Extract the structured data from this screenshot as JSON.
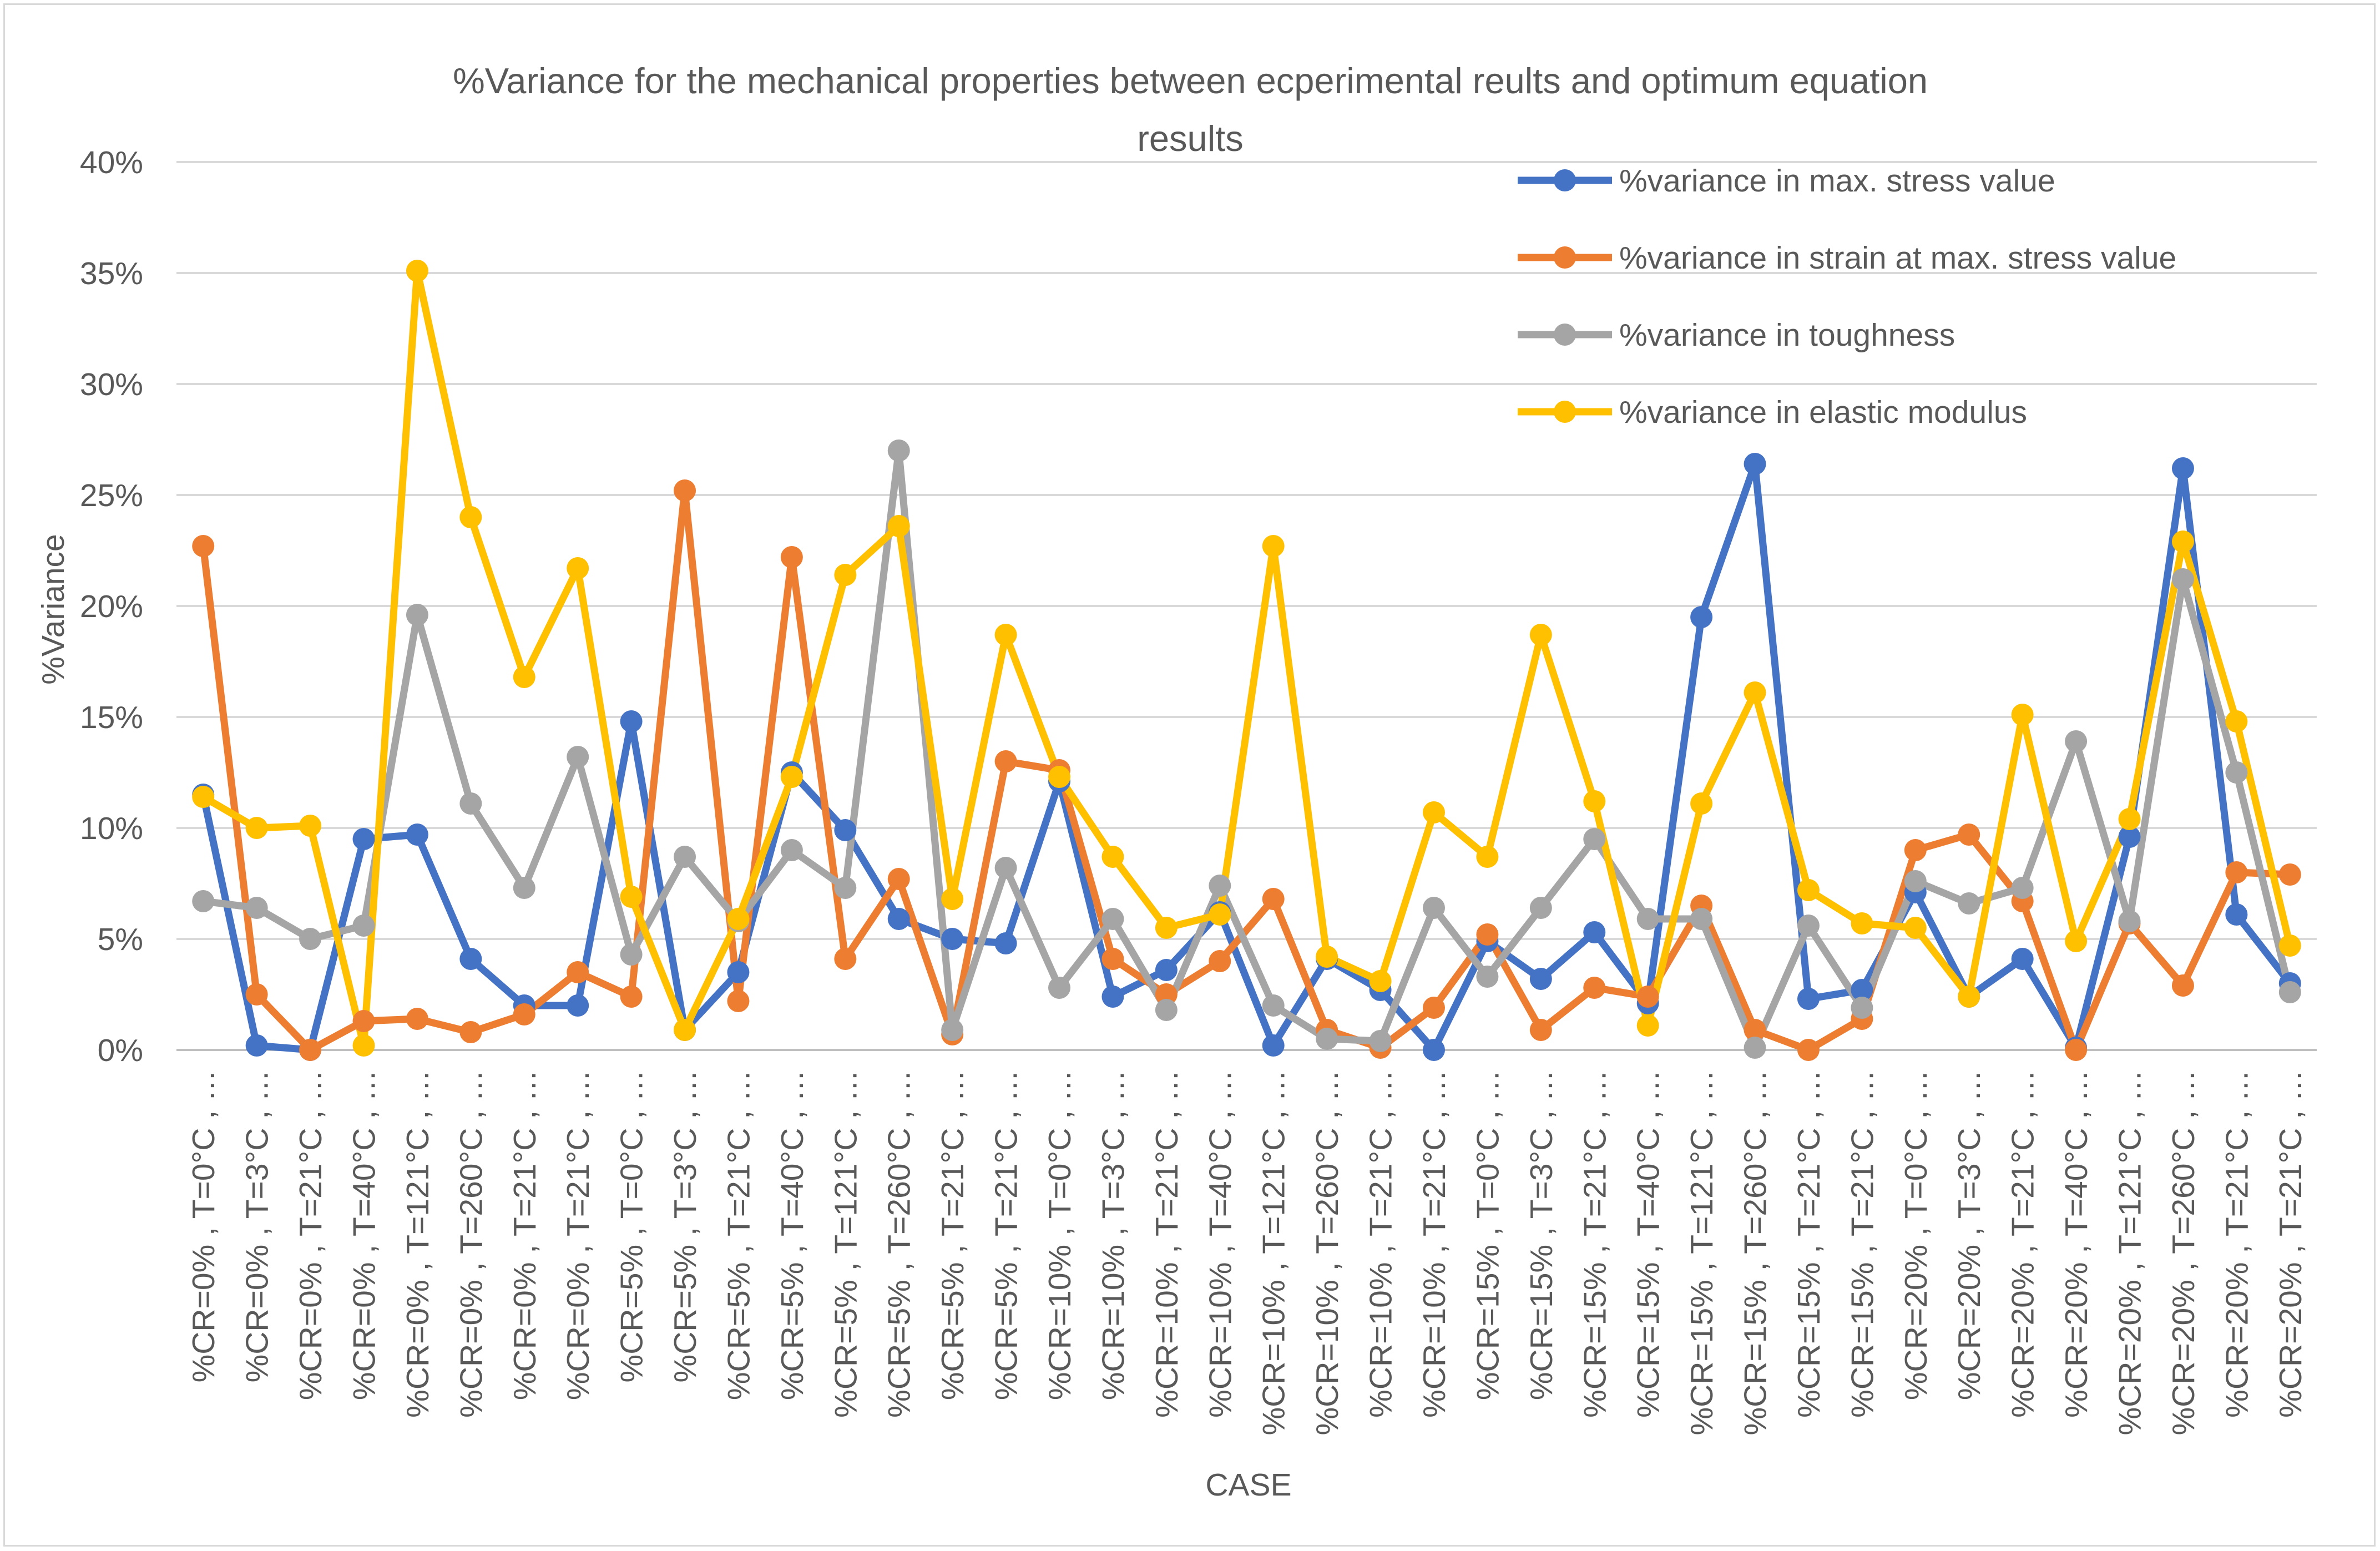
{
  "chart_data": {
    "type": "line",
    "title_lines": [
      "%Variance for the mechanical properties between ecperimental reults and optimum equation",
      "results"
    ],
    "xlabel": "CASE",
    "ylabel": "%Variance",
    "ylim": [
      0,
      40
    ],
    "yticks": [
      "0%",
      "5%",
      "10%",
      "15%",
      "20%",
      "25%",
      "30%",
      "35%",
      "40%"
    ],
    "grid": true,
    "legend_position": "top-right",
    "categories": [
      "%CR=0% , T=0°C , …",
      "%CR=0% , T=3°C , …",
      "%CR=0% , T=21°C , …",
      "%CR=0% , T=40°C , …",
      "%CR=0% , T=121°C , …",
      "%CR=0% , T=260°C , …",
      "%CR=0% , T=21°C , …",
      "%CR=0% , T=21°C , …",
      "%CR=5% , T=0°C , …",
      "%CR=5% , T=3°C , …",
      "%CR=5% , T=21°C , …",
      "%CR=5% , T=40°C , …",
      "%CR=5% , T=121°C , …",
      "%CR=5% , T=260°C , …",
      "%CR=5% , T=21°C , …",
      "%CR=5% , T=21°C , …",
      "%CR=10% , T=0°C , …",
      "%CR=10% , T=3°C , …",
      "%CR=10% , T=21°C , …",
      "%CR=10% , T=40°C , …",
      "%CR=10% , T=121°C , …",
      "%CR=10% , T=260°C , …",
      "%CR=10% , T=21°C , …",
      "%CR=10% , T=21°C , …",
      "%CR=15% , T=0°C , …",
      "%CR=15% , T=3°C , …",
      "%CR=15% , T=21°C , …",
      "%CR=15% , T=40°C , …",
      "%CR=15% , T=121°C , …",
      "%CR=15% , T=260°C , …",
      "%CR=15% , T=21°C , …",
      "%CR=15% , T=21°C , …",
      "%CR=20% , T=0°C , …",
      "%CR=20% , T=3°C , …",
      "%CR=20% , T=21°C , …",
      "%CR=20% , T=40°C , …",
      "%CR=20% , T=121°C , …",
      "%CR=20% , T=260°C , …",
      "%CR=20% , T=21°C , …",
      "%CR=20% , T=21°C , …"
    ],
    "series": [
      {
        "name": "%variance in max. stress value",
        "color": "#4472c4",
        "values": [
          11.5,
          0.2,
          0.0,
          9.5,
          9.7,
          4.1,
          2.0,
          2.0,
          14.8,
          0.9,
          3.5,
          12.5,
          9.9,
          5.9,
          5.0,
          4.8,
          12.1,
          2.4,
          3.6,
          6.2,
          0.2,
          4.1,
          2.7,
          0.0,
          4.9,
          3.2,
          5.3,
          2.1,
          19.5,
          26.4,
          2.3,
          2.7,
          7.1,
          2.4,
          4.1,
          0.1,
          9.6,
          26.2,
          6.1,
          3.0
        ]
      },
      {
        "name": "%variance in strain at max. stress value",
        "color": "#ed7d31",
        "values": [
          22.7,
          2.5,
          0.0,
          1.3,
          1.4,
          0.8,
          1.6,
          3.5,
          2.4,
          25.2,
          2.2,
          22.2,
          4.1,
          7.7,
          0.7,
          13.0,
          12.6,
          4.1,
          2.5,
          4.0,
          6.8,
          0.9,
          0.1,
          1.9,
          5.2,
          0.9,
          2.8,
          2.4,
          6.5,
          0.9,
          0.0,
          1.4,
          9.0,
          9.7,
          6.7,
          0.0,
          5.7,
          2.9,
          8.0,
          7.9
        ]
      },
      {
        "name": "%variance in toughness",
        "color": "#a5a5a5",
        "values": [
          6.7,
          6.4,
          5.0,
          5.6,
          19.6,
          11.1,
          7.3,
          13.2,
          4.3,
          8.7,
          5.8,
          9.0,
          7.3,
          27.0,
          0.9,
          8.2,
          2.8,
          5.9,
          1.8,
          7.4,
          2.0,
          0.5,
          0.4,
          6.4,
          3.3,
          6.4,
          9.5,
          5.9,
          5.9,
          0.1,
          5.6,
          1.9,
          7.6,
          6.6,
          7.3,
          13.9,
          5.8,
          21.2,
          12.5,
          2.6
        ]
      },
      {
        "name": "%variance in elastic modulus",
        "color": "#ffc000",
        "values": [
          11.4,
          10.0,
          10.1,
          0.2,
          35.1,
          24.0,
          16.8,
          21.7,
          6.9,
          0.9,
          5.9,
          12.3,
          21.4,
          23.6,
          6.8,
          18.7,
          12.3,
          8.7,
          5.5,
          6.1,
          22.7,
          4.2,
          3.1,
          10.7,
          8.7,
          18.7,
          11.2,
          1.1,
          11.1,
          16.1,
          7.2,
          5.7,
          5.5,
          2.4,
          15.1,
          4.9,
          10.4,
          22.9,
          14.8,
          4.7
        ]
      }
    ]
  }
}
